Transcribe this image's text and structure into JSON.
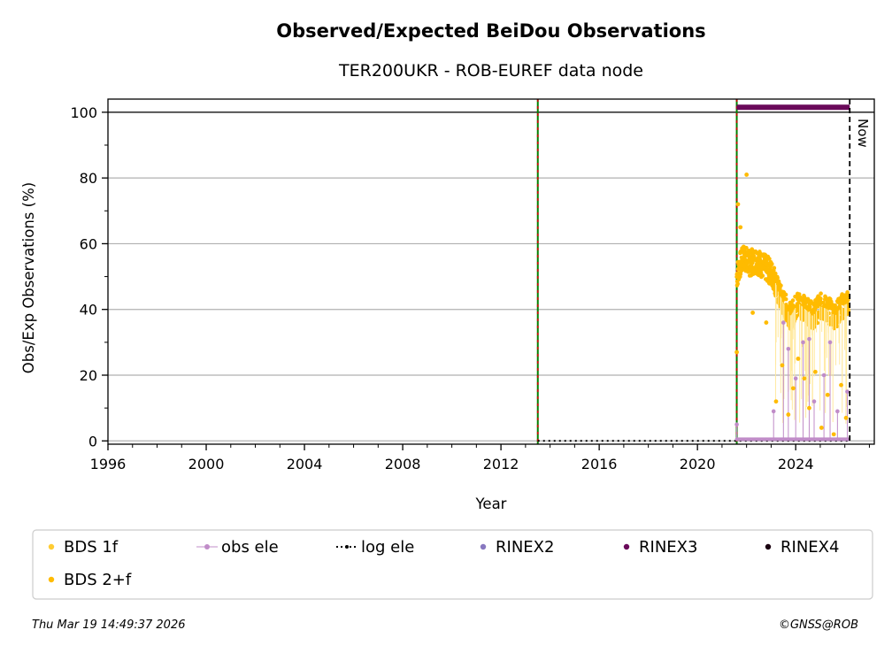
{
  "chart_data": {
    "type": "scatter",
    "title": "Observed/Expected BeiDou Observations",
    "subtitle": "TER200UKR - ROB-EUREF data node",
    "xlabel": "Year",
    "ylabel": "Obs/Exp Observations (%)",
    "xlim": [
      1996,
      2027.2
    ],
    "ylim": [
      -1,
      104
    ],
    "x_ticks": [
      1996,
      2000,
      2004,
      2008,
      2012,
      2016,
      2020,
      2024
    ],
    "y_ticks": [
      0,
      20,
      40,
      60,
      80,
      100
    ],
    "grid": "horizontal",
    "legend_position": "bottom",
    "legend": [
      {
        "label": "BDS 1f",
        "color": "#ffcc33",
        "marker": "dot"
      },
      {
        "label": "obs ele",
        "color": "#c08cc8",
        "marker": "line-dot"
      },
      {
        "label": "log ele",
        "color": "#000000",
        "marker": "dotted-line"
      },
      {
        "label": "RINEX2",
        "color": "#8878c0",
        "marker": "dot"
      },
      {
        "label": "RINEX3",
        "color": "#6a0a5a",
        "marker": "dot"
      },
      {
        "label": "RINEX4",
        "color": "#1a0010",
        "marker": "dot"
      },
      {
        "label": "BDS 2+f",
        "color": "#ffbb00",
        "marker": "dot"
      }
    ],
    "reference_line_y": 100,
    "now_marker": {
      "x": 2026.2,
      "label": "Now"
    },
    "event_lines_x": [
      2013.5,
      2021.6
    ],
    "log_ele_segment": {
      "x": [
        2013.5,
        2026.2
      ],
      "y": 0
    },
    "rinex3_bar": {
      "x": [
        2021.6,
        2026.2
      ],
      "y": 101.5
    },
    "bds_2f_profile": [
      {
        "x": 2021.6,
        "y": 50
      },
      {
        "x": 2021.7,
        "y": 53
      },
      {
        "x": 2021.9,
        "y": 56
      },
      {
        "x": 2022.1,
        "y": 54
      },
      {
        "x": 2022.4,
        "y": 55
      },
      {
        "x": 2022.7,
        "y": 53
      },
      {
        "x": 2022.9,
        "y": 52
      },
      {
        "x": 2023.1,
        "y": 50
      },
      {
        "x": 2023.3,
        "y": 45
      },
      {
        "x": 2023.5,
        "y": 42
      },
      {
        "x": 2023.8,
        "y": 38
      },
      {
        "x": 2024.1,
        "y": 42
      },
      {
        "x": 2024.4,
        "y": 40
      },
      {
        "x": 2024.7,
        "y": 38
      },
      {
        "x": 2025.0,
        "y": 41
      },
      {
        "x": 2025.3,
        "y": 40
      },
      {
        "x": 2025.6,
        "y": 38
      },
      {
        "x": 2025.9,
        "y": 41
      },
      {
        "x": 2026.15,
        "y": 42
      }
    ],
    "bds_2f_spikes": [
      {
        "x": 2021.6,
        "y": 27
      },
      {
        "x": 2021.65,
        "y": 72
      },
      {
        "x": 2021.75,
        "y": 65
      },
      {
        "x": 2022.0,
        "y": 81
      },
      {
        "x": 2022.25,
        "y": 39
      },
      {
        "x": 2022.8,
        "y": 36
      },
      {
        "x": 2023.2,
        "y": 12
      },
      {
        "x": 2023.45,
        "y": 23
      },
      {
        "x": 2023.7,
        "y": 8
      },
      {
        "x": 2023.9,
        "y": 16
      },
      {
        "x": 2024.1,
        "y": 25
      },
      {
        "x": 2024.35,
        "y": 19
      },
      {
        "x": 2024.55,
        "y": 10
      },
      {
        "x": 2024.8,
        "y": 21
      },
      {
        "x": 2025.05,
        "y": 4
      },
      {
        "x": 2025.3,
        "y": 14
      },
      {
        "x": 2025.55,
        "y": 2
      },
      {
        "x": 2025.85,
        "y": 17
      },
      {
        "x": 2026.05,
        "y": 7
      }
    ],
    "obs_ele_spikes": [
      {
        "x": 2021.6,
        "y": 5
      },
      {
        "x": 2023.1,
        "y": 9
      },
      {
        "x": 2023.5,
        "y": 36
      },
      {
        "x": 2023.7,
        "y": 28
      },
      {
        "x": 2024.0,
        "y": 19
      },
      {
        "x": 2024.3,
        "y": 30
      },
      {
        "x": 2024.55,
        "y": 31
      },
      {
        "x": 2024.75,
        "y": 12
      },
      {
        "x": 2025.15,
        "y": 20
      },
      {
        "x": 2025.4,
        "y": 30
      },
      {
        "x": 2025.7,
        "y": 9
      },
      {
        "x": 2026.1,
        "y": 15
      }
    ]
  },
  "footer": {
    "timestamp": "Thu Mar 19 14:49:37 2026",
    "credit": "©GNSS@ROB"
  }
}
